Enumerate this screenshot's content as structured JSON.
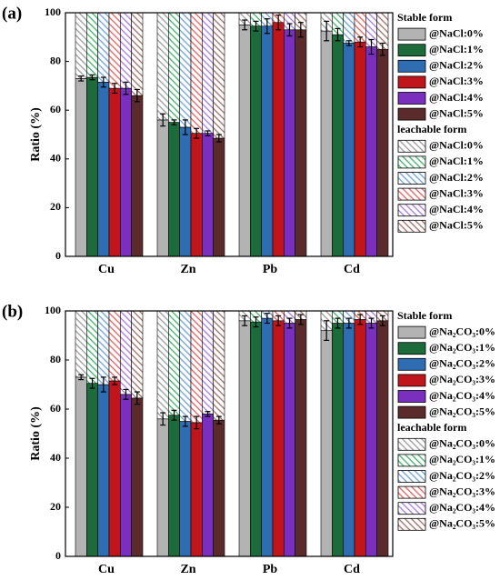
{
  "chart_data": [
    {
      "type": "bar",
      "stacked": true,
      "panel_label": "(a)",
      "ylabel": "Ratio (%)",
      "categories": [
        "Cu",
        "Zn",
        "Pb",
        "Cd"
      ],
      "ylim": [
        0,
        100
      ],
      "yticks": [
        0,
        20,
        40,
        60,
        80,
        100
      ],
      "stable_title": "Stable form",
      "leachable_title": "leachable form",
      "stable_series": [
        {
          "name": "@NaCl:0%",
          "color": "#b3b3b3",
          "values": [
            73,
            56,
            95,
            92.5
          ],
          "errors": [
            1,
            2.5,
            2,
            4
          ]
        },
        {
          "name": "@NaCl:1%",
          "color": "#1d6b3b",
          "values": [
            73.5,
            55,
            94.5,
            91
          ],
          "errors": [
            1,
            1,
            2,
            2.5
          ]
        },
        {
          "name": "@NaCl:2%",
          "color": "#2f6db3",
          "values": [
            71.5,
            53,
            94.5,
            87.5
          ],
          "errors": [
            2,
            3,
            3,
            1
          ]
        },
        {
          "name": "@NaCl:3%",
          "color": "#c0161b",
          "values": [
            69,
            50.5,
            96,
            88
          ],
          "errors": [
            2,
            2,
            3,
            2
          ]
        },
        {
          "name": "@NaCl:4%",
          "color": "#7a2fbe",
          "values": [
            69,
            50.5,
            93,
            86
          ],
          "errors": [
            2.5,
            1,
            2.5,
            3
          ]
        },
        {
          "name": "@NaCl:5%",
          "color": "#5b2b2b",
          "values": [
            66,
            48.5,
            93,
            85
          ],
          "errors": [
            2.5,
            1.5,
            3,
            2.5
          ]
        }
      ],
      "leachable_series": [
        {
          "name": "@NaCl:0%",
          "color": "#9a9a9a",
          "values": [
            27,
            44,
            5,
            7.5
          ]
        },
        {
          "name": "@NaCl:1%",
          "color": "#3fae6a",
          "values": [
            26.5,
            45,
            5.5,
            9
          ]
        },
        {
          "name": "@NaCl:2%",
          "color": "#6d9fd6",
          "values": [
            28.5,
            47,
            5.5,
            12.5
          ]
        },
        {
          "name": "@NaCl:3%",
          "color": "#e0605f",
          "values": [
            31,
            49.5,
            4,
            12
          ]
        },
        {
          "name": "@NaCl:4%",
          "color": "#a57ad8",
          "values": [
            31,
            49.5,
            7,
            14
          ]
        },
        {
          "name": "@NaCl:5%",
          "color": "#9a6e66",
          "values": [
            34,
            51.5,
            7,
            15
          ]
        }
      ]
    },
    {
      "type": "bar",
      "stacked": true,
      "panel_label": "(b)",
      "ylabel": "Ratio (%)",
      "categories": [
        "Cu",
        "Zn",
        "Pb",
        "Cd"
      ],
      "ylim": [
        0,
        100
      ],
      "yticks": [
        0,
        20,
        40,
        60,
        80,
        100
      ],
      "stable_title": "Stable form",
      "leachable_title": "leachable form",
      "stable_series": [
        {
          "name": "@Na₂CO₃:0%",
          "color": "#b3b3b3",
          "values": [
            73,
            56,
            96,
            92
          ],
          "errors": [
            1,
            2.5,
            2,
            4
          ]
        },
        {
          "name": "@Na₂CO₃:1%",
          "color": "#1d6b3b",
          "values": [
            70.5,
            57.5,
            95.5,
            95
          ],
          "errors": [
            2,
            2,
            2,
            2
          ]
        },
        {
          "name": "@Na₂CO₃:2%",
          "color": "#2f6db3",
          "values": [
            70,
            55,
            97,
            95
          ],
          "errors": [
            3,
            2,
            2,
            2
          ]
        },
        {
          "name": "@Na₂CO₃:3%",
          "color": "#c0161b",
          "values": [
            71.5,
            54.5,
            96,
            96.5
          ],
          "errors": [
            1.5,
            2.5,
            2,
            2
          ]
        },
        {
          "name": "@Na₂CO₃:4%",
          "color": "#7a2fbe",
          "values": [
            66,
            58,
            95,
            95
          ],
          "errors": [
            2,
            1,
            2,
            2
          ]
        },
        {
          "name": "@Na₂CO₃:5%",
          "color": "#5b2b2b",
          "values": [
            64.5,
            55.5,
            96.5,
            96
          ],
          "errors": [
            2.5,
            1.5,
            2,
            2
          ]
        }
      ],
      "leachable_series": [
        {
          "name": "@Na₂CO₃:0%",
          "color": "#9a9a9a",
          "values": [
            27,
            44,
            4,
            8
          ]
        },
        {
          "name": "@Na₂CO₃:1%",
          "color": "#3fae6a",
          "values": [
            29.5,
            42.5,
            4.5,
            5
          ]
        },
        {
          "name": "@Na₂CO₃:2%",
          "color": "#6d9fd6",
          "values": [
            30,
            45,
            3,
            5
          ]
        },
        {
          "name": "@Na₂CO₃:3%",
          "color": "#e0605f",
          "values": [
            28.5,
            45.5,
            4,
            3.5
          ]
        },
        {
          "name": "@Na₂CO₃:4%",
          "color": "#a57ad8",
          "values": [
            34,
            42,
            5,
            5
          ]
        },
        {
          "name": "@Na₂CO₃:5%",
          "color": "#9a6e66",
          "values": [
            35.5,
            44.5,
            3.5,
            4
          ]
        }
      ]
    }
  ]
}
